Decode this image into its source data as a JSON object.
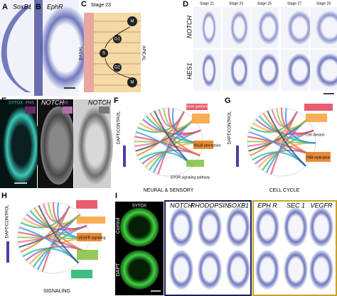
{
  "panels": {
    "A": {
      "letter": "A",
      "label": "SoxB1"
    },
    "B": {
      "letter": "B",
      "label": "EphR"
    },
    "C": {
      "letter": "C",
      "title": "Stage 23",
      "basal": "BASAL",
      "apical": "APICAL",
      "phases": [
        "M",
        "G1",
        "S",
        "G2",
        "M"
      ]
    },
    "D": {
      "letter": "D",
      "stages": [
        "Stage 21",
        "Stage 23",
        "Stage 25",
        "Stage 27",
        "Stage 29"
      ],
      "rows": [
        "NOTCH",
        "HES1"
      ]
    },
    "E": {
      "letter": "E",
      "labels": [
        "SYTOX",
        "PH3",
        "NOTCH",
        "PH3",
        "NOTCH"
      ]
    },
    "F": {
      "letter": "F",
      "axis": "DAPT/CONTROL",
      "caption": "NEURAL & SENSORY",
      "terms": [
        "Axon guidance",
        "Visual perception",
        "EPOR signaling pathway"
      ]
    },
    "G": {
      "letter": "G",
      "axis": "DAPT/CONTROL",
      "caption": "CELL CYCLE",
      "terms": [
        "Cell division",
        "DNA replication"
      ]
    },
    "H": {
      "letter": "H",
      "axis": "DAPT/CONTROL",
      "caption": "SIGNALING",
      "terms": [
        "VEGFR signaling"
      ]
    },
    "I": {
      "letter": "I",
      "columns": [
        "SYTOX",
        "NOTCH",
        "RHODOPSIN",
        "SOXB1",
        "EPH R",
        "SEC 1",
        "VEGFR"
      ],
      "rows": [
        "Control",
        "DAPT"
      ]
    }
  }
}
